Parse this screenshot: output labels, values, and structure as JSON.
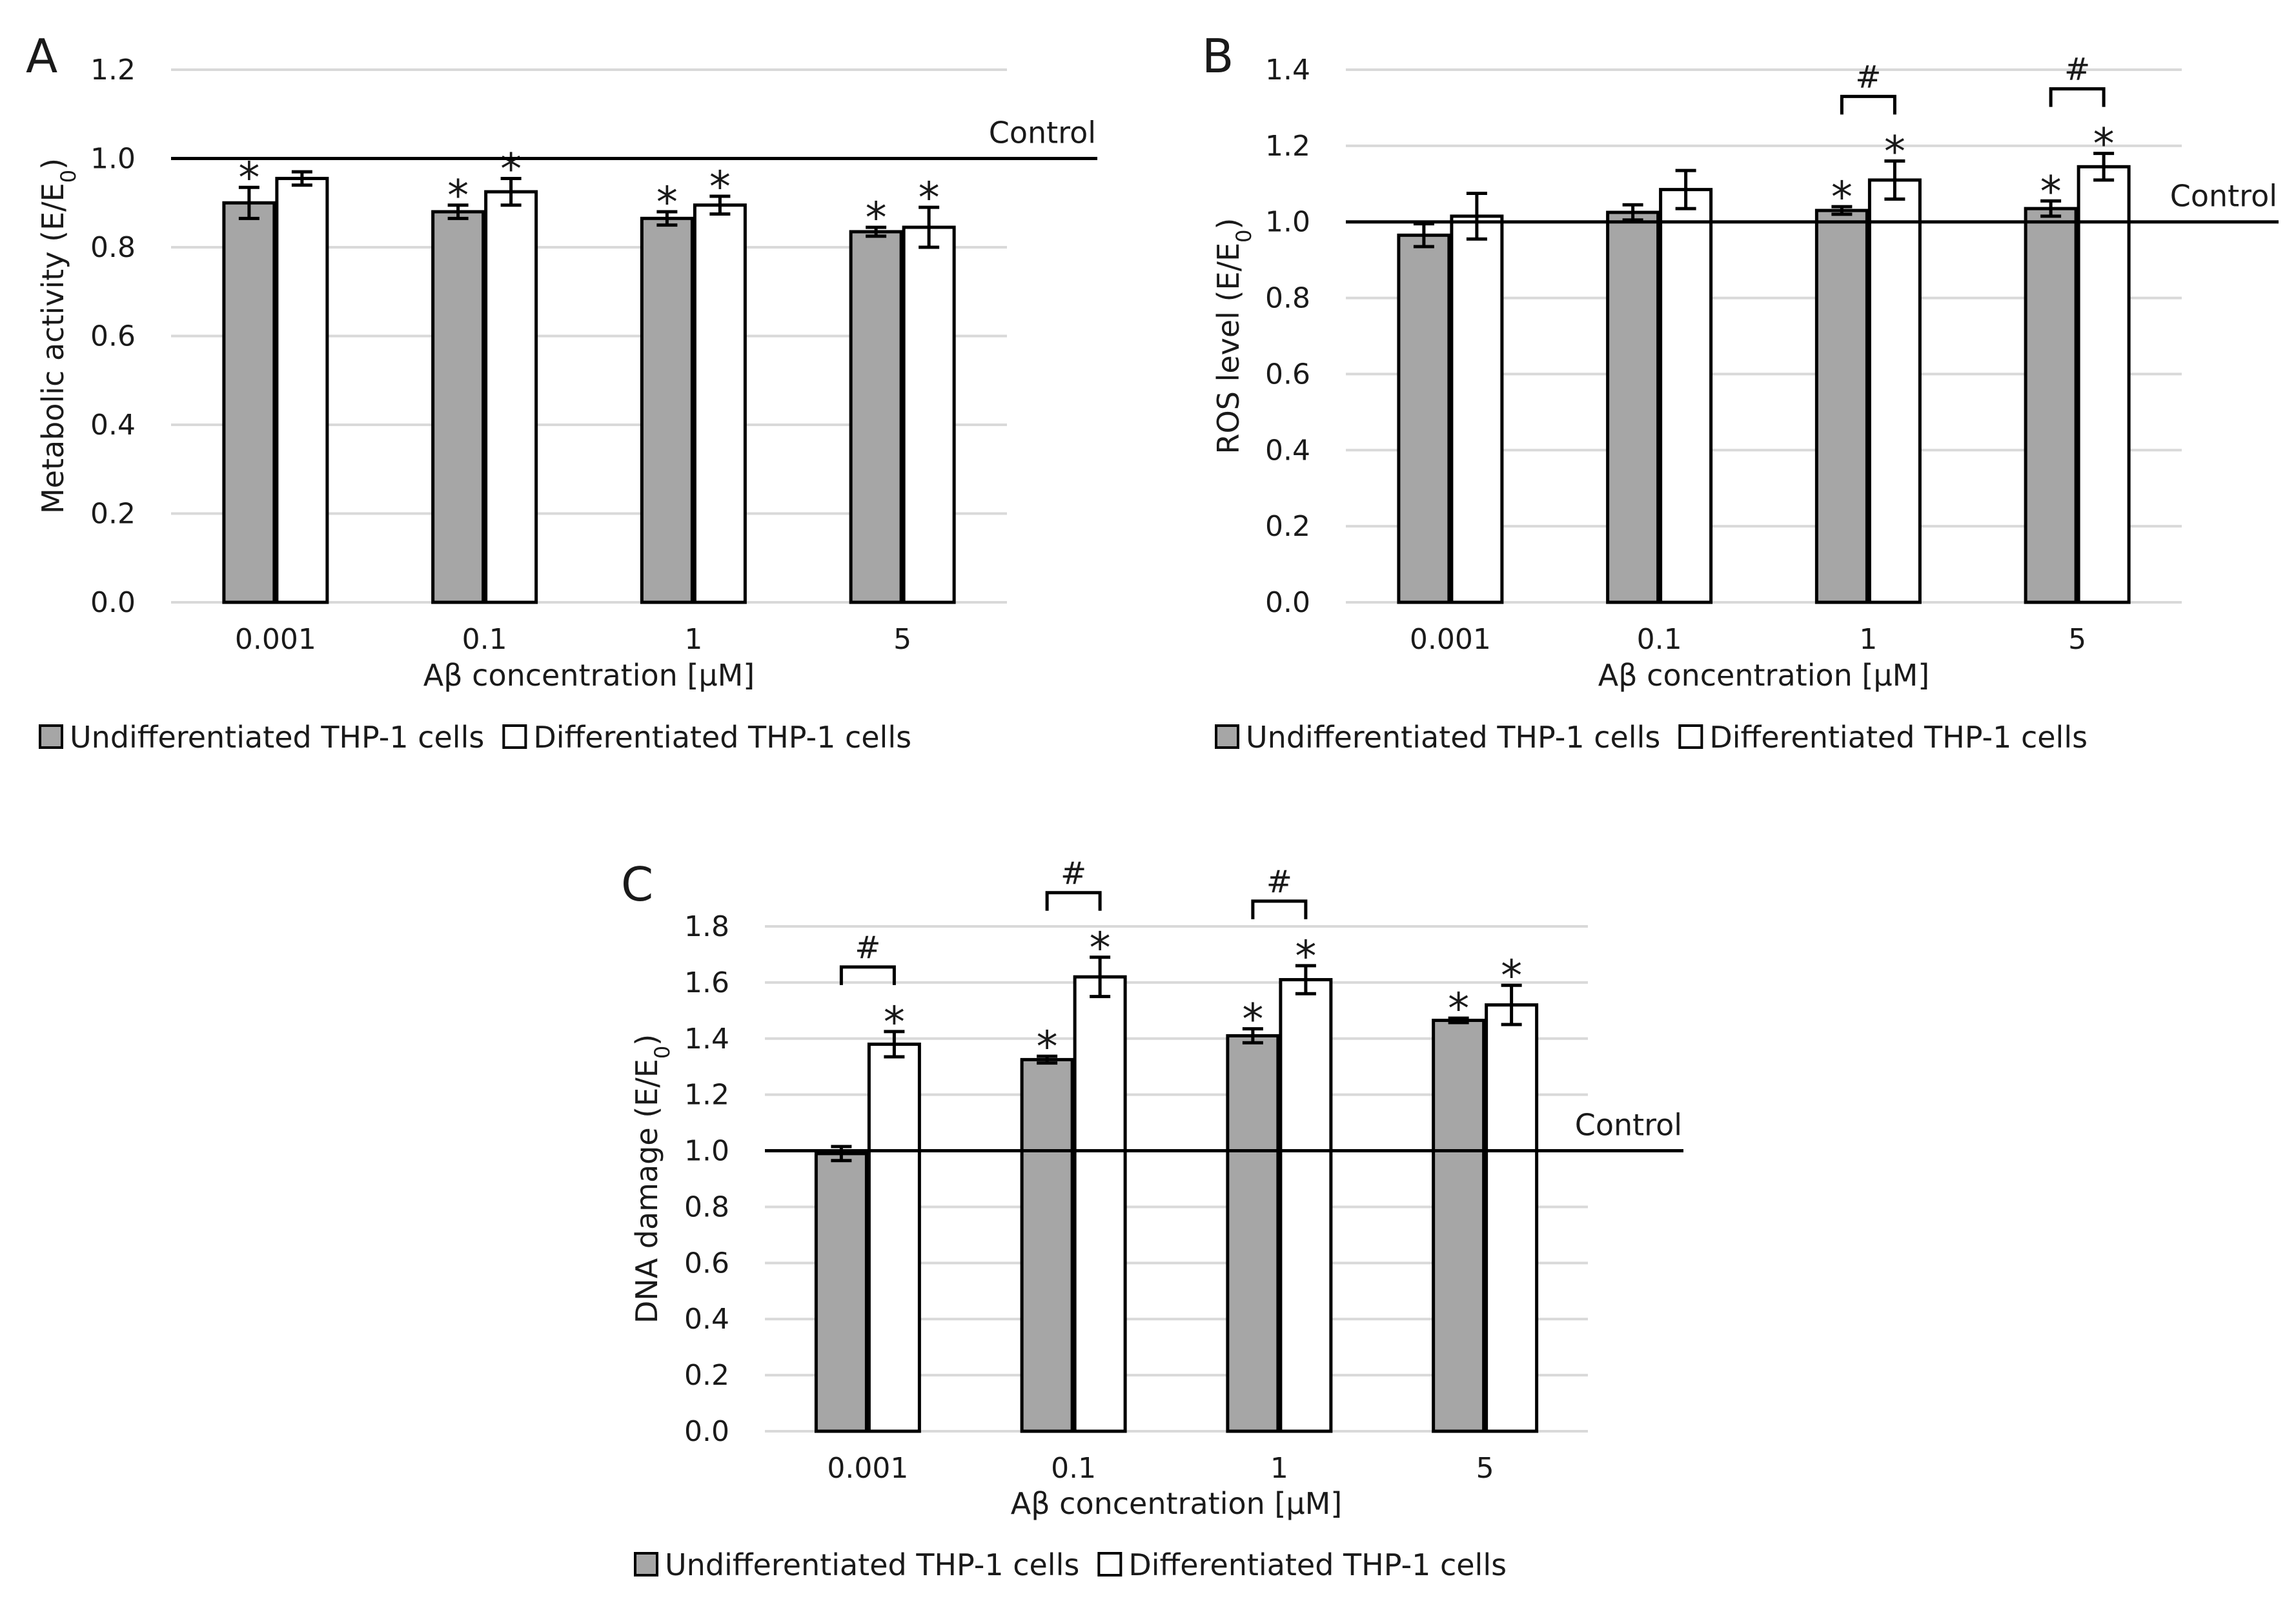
{
  "colors": {
    "undifferentiated": "#a6a6a6",
    "differentiated": "#ffffff",
    "outline": "#000000",
    "grid": "#d9d9d9",
    "control_line": "#000000"
  },
  "chart_data": [
    {
      "panel": "A",
      "type": "bar",
      "categories": [
        "0.001",
        "0.1",
        "1",
        "5"
      ],
      "xlabel": "Aβ concentration [μM]",
      "ylabel": "Metabolic activity (E/E",
      "ylabel_sub": "0",
      "ylabel_end": ")",
      "ylim": [
        0,
        1.2
      ],
      "yticks": [
        0,
        0.2,
        0.4,
        0.6,
        0.8,
        1.0,
        1.2
      ],
      "ytick_labels": [
        "0.0",
        "0.2",
        "0.4",
        "0.6",
        "0.8",
        "1.0",
        "1.2"
      ],
      "control": {
        "value": 1.0,
        "label": "Control"
      },
      "series": [
        {
          "name": "Undifferentiated THP-1 cells",
          "values": [
            0.9,
            0.88,
            0.865,
            0.835
          ],
          "errors": [
            0.035,
            0.015,
            0.015,
            0.01
          ],
          "marks": [
            "*",
            "*",
            "*",
            "*"
          ]
        },
        {
          "name": "Differentiated THP-1 cells",
          "values": [
            0.955,
            0.925,
            0.895,
            0.845
          ],
          "errors": [
            0.015,
            0.03,
            0.02,
            0.045
          ],
          "marks": [
            "",
            "*",
            "*",
            "*"
          ]
        }
      ],
      "brackets": [],
      "legend": "bottom"
    },
    {
      "panel": "B",
      "type": "bar",
      "categories": [
        "0.001",
        "0.1",
        "1",
        "5"
      ],
      "xlabel": "Aβ concentration [μM]",
      "ylabel": "ROS level (E/E",
      "ylabel_sub": "0",
      "ylabel_end": ")",
      "ylim": [
        0,
        1.4
      ],
      "yticks": [
        0,
        0.2,
        0.4,
        0.6,
        0.8,
        1.0,
        1.2,
        1.4
      ],
      "ytick_labels": [
        "0.0",
        "0.2",
        "0.4",
        "0.6",
        "0.8",
        "1.0",
        "1.2",
        "1.4"
      ],
      "control": {
        "value": 1.0,
        "label": "Control"
      },
      "series": [
        {
          "name": "Undifferentiated THP-1 cells",
          "values": [
            0.965,
            1.025,
            1.03,
            1.035
          ],
          "errors": [
            0.03,
            0.02,
            0.01,
            0.02
          ],
          "marks": [
            "",
            "",
            "*",
            "*"
          ]
        },
        {
          "name": "Differentiated THP-1 cells",
          "values": [
            1.015,
            1.085,
            1.11,
            1.145
          ],
          "errors": [
            0.06,
            0.05,
            0.05,
            0.035
          ],
          "marks": [
            "",
            "",
            "*",
            "*"
          ]
        }
      ],
      "brackets": [
        {
          "category_index": 2,
          "label": "#"
        },
        {
          "category_index": 3,
          "label": "#"
        }
      ],
      "legend": "bottom"
    },
    {
      "panel": "C",
      "type": "bar",
      "categories": [
        "0.001",
        "0.1",
        "1",
        "5"
      ],
      "xlabel": "Aβ concentration [μM]",
      "ylabel": "DNA damage (E/E",
      "ylabel_sub": "0",
      "ylabel_end": ")",
      "ylim": [
        0,
        1.8
      ],
      "yticks": [
        0,
        0.2,
        0.4,
        0.6,
        0.8,
        1.0,
        1.2,
        1.4,
        1.6,
        1.8
      ],
      "ytick_labels": [
        "0.0",
        "0.2",
        "0.4",
        "0.6",
        "0.8",
        "1.0",
        "1.2",
        "1.4",
        "1.6",
        "1.8"
      ],
      "control": {
        "value": 1.0,
        "label": "Control"
      },
      "series": [
        {
          "name": "Undifferentiated THP-1 cells",
          "values": [
            0.99,
            1.325,
            1.41,
            1.465
          ],
          "errors": [
            0.025,
            0.012,
            0.025,
            0.008
          ],
          "marks": [
            "",
            "*",
            "*",
            "*"
          ]
        },
        {
          "name": "Differentiated THP-1 cells",
          "values": [
            1.38,
            1.62,
            1.61,
            1.52
          ],
          "errors": [
            0.045,
            0.07,
            0.05,
            0.07
          ],
          "marks": [
            "*",
            "*",
            "*",
            "*"
          ]
        }
      ],
      "brackets": [
        {
          "category_index": 0,
          "label": "#"
        },
        {
          "category_index": 1,
          "label": "#"
        },
        {
          "category_index": 2,
          "label": "#"
        }
      ],
      "legend": "bottom"
    }
  ]
}
